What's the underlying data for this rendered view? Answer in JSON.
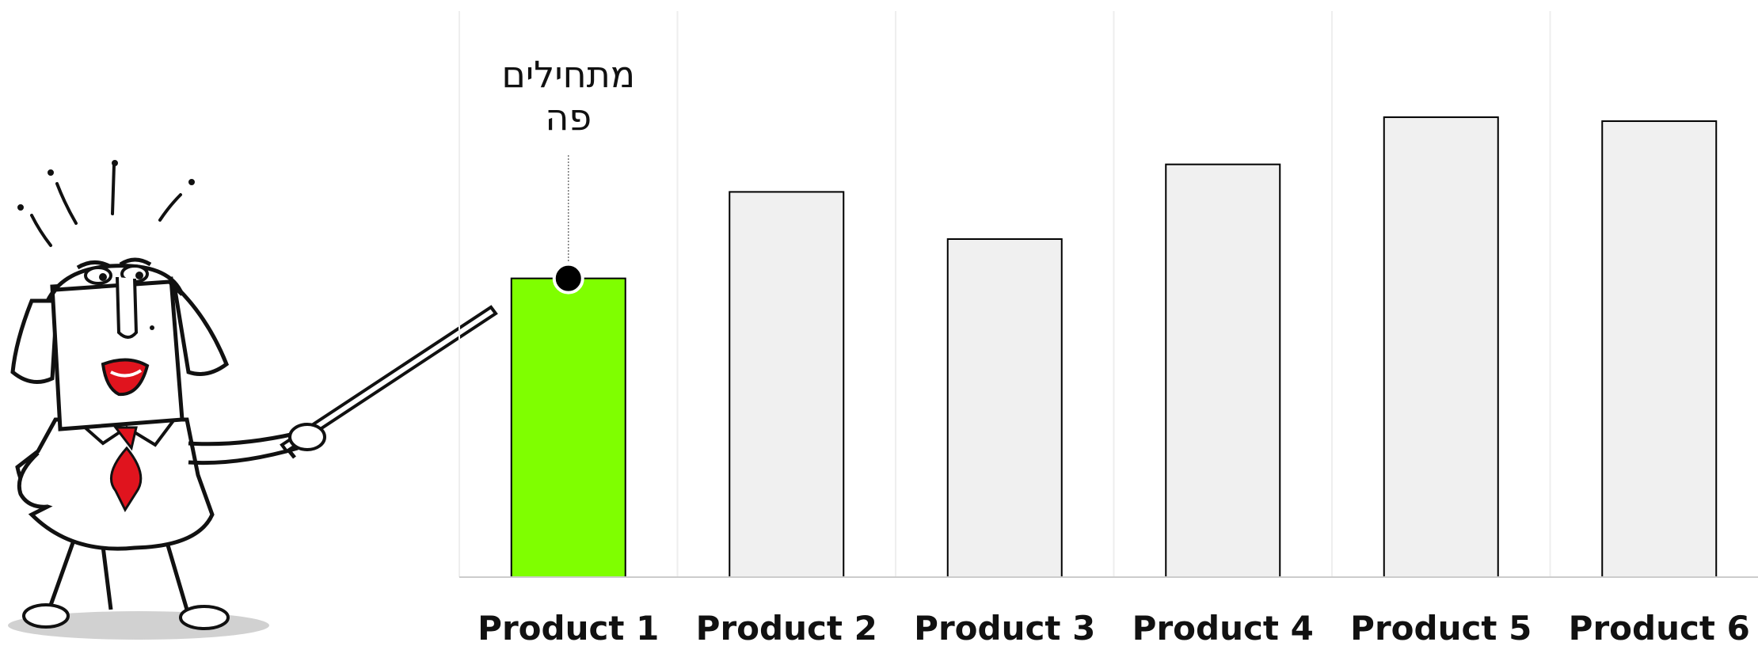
{
  "chart_data": {
    "type": "bar",
    "categories": [
      "Product 1",
      "Product 2",
      "Product 3",
      "Product 4",
      "Product 5",
      "Product 6"
    ],
    "values": [
      38,
      49,
      43,
      52.5,
      58.5,
      58
    ],
    "ylim": [
      0,
      72
    ],
    "grid": "vertical lines between categories",
    "highlight_index": 0,
    "colors": {
      "highlight": "#7fff00",
      "bar": "#f0f0f0",
      "outline": "#000000",
      "grid": "#eeeeee"
    },
    "annotation": {
      "category": "Product 1",
      "lines": [
        "מתחילים",
        "פה"
      ]
    }
  },
  "illustration": {
    "figure": "cartoon-woman-with-pointer",
    "accent": "#e0141e"
  }
}
